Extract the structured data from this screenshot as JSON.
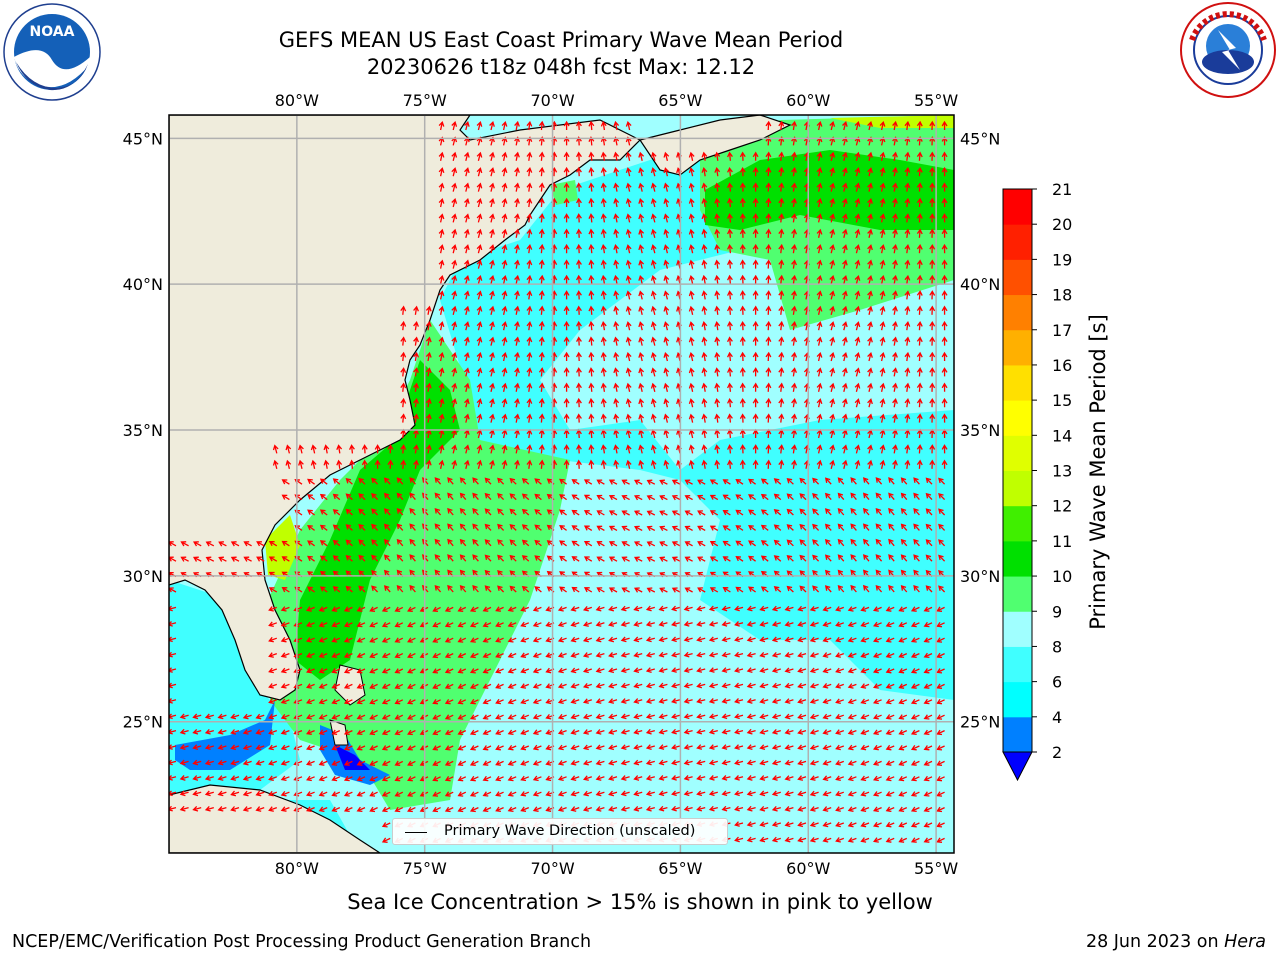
{
  "header": {
    "title_line1": "GEFS MEAN US East Coast Primary Wave Mean Period",
    "title_line2": "20230626 t18z 048h fcst   Max: 12.12"
  },
  "logos": {
    "left": {
      "icon": "noaa-logo",
      "text": "NOAA"
    },
    "right": {
      "icon": "national-weather-service-logo"
    }
  },
  "map": {
    "lon_labels": [
      "80°W",
      "75°W",
      "70°W",
      "65°W",
      "60°W",
      "55°W"
    ],
    "lat_labels": [
      "45°N",
      "40°N",
      "35°N",
      "30°N",
      "25°N"
    ],
    "lon_range": [
      -85,
      -54.3
    ],
    "lat_range": [
      20.5,
      45.8
    ],
    "vector_color": "#ff0000",
    "land_color": "#efecdc",
    "legend_label": "Primary Wave Direction (unscaled)"
  },
  "colorbar": {
    "label": "Primary Wave Mean Period [s]",
    "ticks": [
      "2",
      "4",
      "6",
      "8",
      "9",
      "10",
      "11",
      "12",
      "13",
      "14",
      "15",
      "16",
      "17",
      "18",
      "19",
      "20",
      "21"
    ],
    "colors": [
      "#0080ff",
      "#00ffff",
      "#40ffff",
      "#a0ffff",
      "#50ff70",
      "#00e000",
      "#40ef00",
      "#c0ff00",
      "#e0ff00",
      "#ffff00",
      "#ffe000",
      "#ffb000",
      "#ff8000",
      "#ff5000",
      "#ff2000",
      "#ff0000"
    ],
    "extend_color": "#0000ff"
  },
  "caption": "Sea Ice Concentration > 15% is shown in pink to yellow",
  "footer": {
    "left": "NCEP/EMC/Verification Post Processing Product Generation Branch",
    "right_date": "28 Jun 2023 on ",
    "right_machine": "Hera"
  }
}
